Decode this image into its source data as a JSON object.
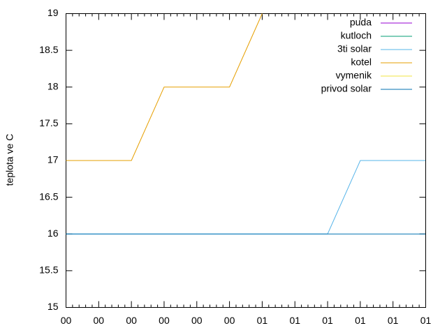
{
  "chart_data": {
    "type": "line",
    "ylabel": "teplota ve C",
    "x": [
      0,
      1,
      2,
      3,
      4,
      5,
      6,
      7,
      8,
      9,
      10,
      11
    ],
    "xlim": [
      0,
      11
    ],
    "xticks": [
      {
        "value": 0,
        "label": "00"
      },
      {
        "value": 1,
        "label": "00"
      },
      {
        "value": 2,
        "label": "00"
      },
      {
        "value": 3,
        "label": "00"
      },
      {
        "value": 4,
        "label": "00"
      },
      {
        "value": 5,
        "label": "00"
      },
      {
        "value": 6,
        "label": "01"
      },
      {
        "value": 7,
        "label": "01"
      },
      {
        "value": 8,
        "label": "01"
      },
      {
        "value": 9,
        "label": "01"
      },
      {
        "value": 10,
        "label": "01"
      },
      {
        "value": 11,
        "label": "01"
      }
    ],
    "ylim": [
      15,
      19
    ],
    "yticks": [
      15,
      15.5,
      16,
      16.5,
      17,
      17.5,
      18,
      18.5,
      19
    ],
    "legend": "top-right",
    "series": [
      {
        "name": "puda",
        "color": "#9400d3",
        "values": [
          null,
          null,
          null,
          null,
          null,
          null,
          null,
          null,
          null,
          null,
          null,
          null
        ]
      },
      {
        "name": "kutloch",
        "color": "#009e73",
        "values": [
          null,
          null,
          null,
          null,
          null,
          null,
          null,
          null,
          null,
          null,
          null,
          null
        ]
      },
      {
        "name": "3ti solar",
        "color": "#56b4e9",
        "values": [
          16,
          16,
          16,
          16,
          16,
          16,
          16,
          16,
          16,
          17,
          17,
          17
        ]
      },
      {
        "name": "kotel",
        "color": "#e69f00",
        "values": [
          17,
          17,
          17,
          18,
          18,
          18,
          19,
          null,
          null,
          null,
          null,
          null
        ]
      },
      {
        "name": "vymenik",
        "color": "#f0e442",
        "values": [
          null,
          null,
          null,
          null,
          null,
          null,
          null,
          null,
          null,
          null,
          null,
          null
        ]
      },
      {
        "name": "privod solar",
        "color": "#0072b2",
        "values": [
          16,
          16,
          16,
          16,
          16,
          16,
          16,
          16,
          16,
          16,
          16,
          16
        ]
      }
    ]
  }
}
